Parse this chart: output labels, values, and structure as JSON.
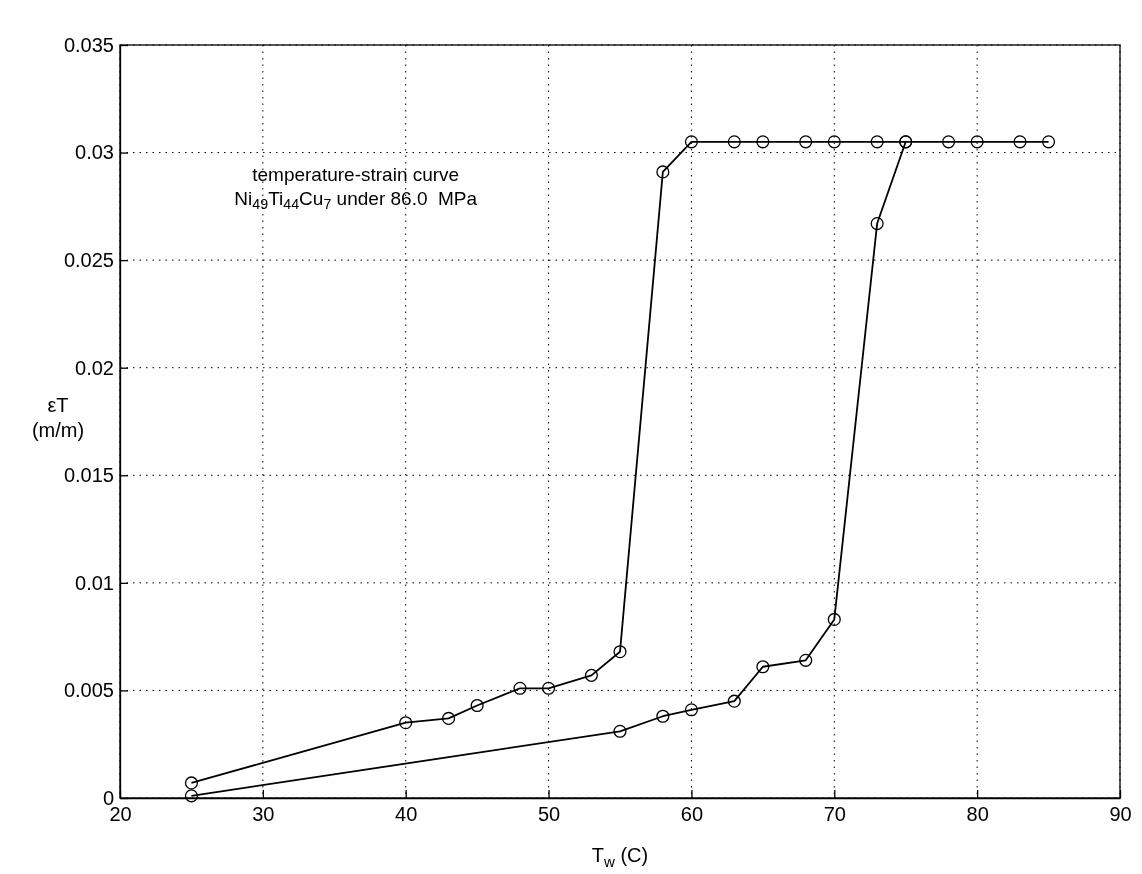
{
  "chart_data": {
    "type": "line",
    "xlabel": "T$_{w}$ (C)",
    "ylabel": "εT (m/m)",
    "annotations": [
      "temperature-strain curve",
      "Ni$_{49}$Ti$_{44}$Cu$_{7}$ under 86.0  MPa"
    ],
    "series": [
      {
        "color": "#000000",
        "x": [
          25,
          40,
          43,
          45,
          48,
          50,
          53,
          55,
          58,
          60,
          63,
          65,
          68,
          70,
          73,
          75
        ],
        "values": [
          0.0007,
          0.0035,
          0.0037,
          0.0043,
          0.0051,
          0.0051,
          0.0057,
          0.0068,
          0.0291,
          0.0305,
          0.0305,
          0.0305,
          0.0305,
          0.0305,
          0.0305,
          0.0305
        ]
      },
      {
        "color": "#000000",
        "x": [
          25,
          55,
          58,
          60,
          63,
          65,
          68,
          70,
          73,
          75,
          78,
          80,
          83,
          85
        ],
        "values": [
          0.0001,
          0.0031,
          0.0038,
          0.0041,
          0.0045,
          0.0061,
          0.0064,
          0.0083,
          0.0267,
          0.0305,
          0.0305,
          0.0305,
          0.0305,
          0.0305
        ]
      }
    ],
    "xlim": [
      20,
      90
    ],
    "xticks": [
      20,
      30,
      40,
      50,
      60,
      70,
      80,
      90
    ],
    "ylim": [
      0,
      0.035
    ],
    "yticks": [
      0,
      0.005,
      0.01,
      0.015,
      0.02,
      0.025,
      0.03,
      0.035
    ],
    "grid": true,
    "marker": "circle",
    "line_style": "solid"
  }
}
